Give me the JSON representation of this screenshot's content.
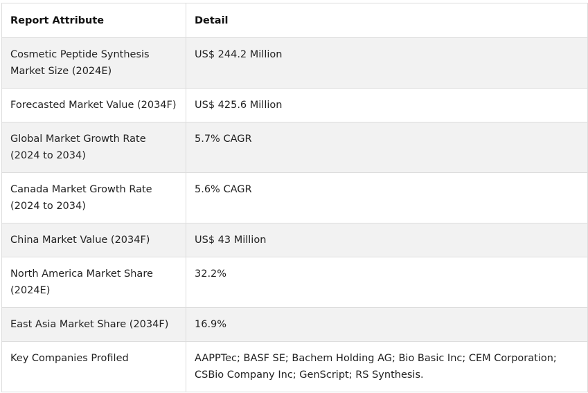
{
  "table": {
    "headers": [
      "Report Attribute",
      "Detail"
    ],
    "rows": [
      {
        "attribute": "Cosmetic Peptide Synthesis Market Size (2024E)",
        "detail": "US$ 244.2 Million"
      },
      {
        "attribute": "Forecasted Market Value (2034F)",
        "detail": "US$ 425.6 Million"
      },
      {
        "attribute": "Global Market Growth Rate (2024 to 2034)",
        "detail": "5.7% CAGR"
      },
      {
        "attribute": "Canada Market Growth Rate (2024 to 2034)",
        "detail": "5.6% CAGR"
      },
      {
        "attribute": "China Market Value (2034F)",
        "detail": "US$ 43 Million"
      },
      {
        "attribute": "North America Market Share (2024E)",
        "detail": "32.2%"
      },
      {
        "attribute": "East Asia Market Share (2034F)",
        "detail": "16.9%"
      },
      {
        "attribute": "Key Companies Profiled",
        "detail": "AAPPTec; BASF SE; Bachem Holding AG; Bio Basic Inc; CEM Corporation; CSBio Company Inc; GenScript; RS Synthesis."
      }
    ]
  }
}
